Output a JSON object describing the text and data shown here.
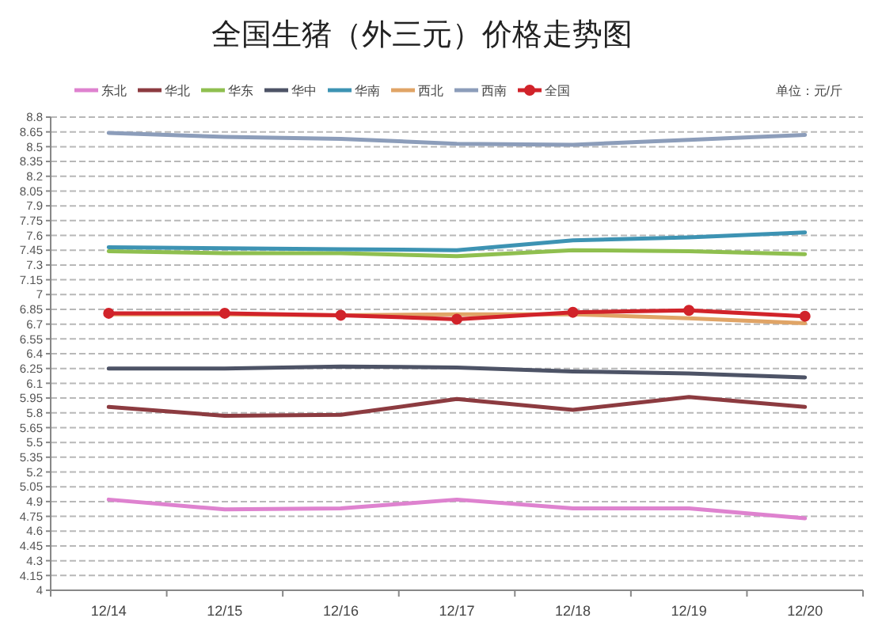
{
  "chart_data": {
    "type": "line",
    "title": "全国生猪（外三元）价格走势图",
    "annotations": [
      "单位：元/斤"
    ],
    "categories": [
      "12/14",
      "12/15",
      "12/16",
      "12/17",
      "12/18",
      "12/19",
      "12/20"
    ],
    "series": [
      {
        "name": "东北",
        "color": "#de82cf",
        "values": [
          4.92,
          4.82,
          4.83,
          4.92,
          4.83,
          4.83,
          4.73
        ]
      },
      {
        "name": "华北",
        "color": "#8c3b40",
        "values": [
          5.86,
          5.77,
          5.78,
          5.94,
          5.83,
          5.96,
          5.86
        ]
      },
      {
        "name": "华东",
        "color": "#8fbf4f",
        "values": [
          7.44,
          7.42,
          7.42,
          7.39,
          7.45,
          7.44,
          7.41
        ]
      },
      {
        "name": "华中",
        "color": "#4d5366",
        "values": [
          6.25,
          6.25,
          6.27,
          6.26,
          6.22,
          6.2,
          6.16
        ]
      },
      {
        "name": "华南",
        "color": "#3d93b3",
        "values": [
          7.48,
          7.47,
          7.46,
          7.45,
          7.55,
          7.58,
          7.63
        ]
      },
      {
        "name": "西北",
        "color": "#e0a466",
        "values": [
          6.8,
          6.8,
          6.79,
          6.8,
          6.8,
          6.76,
          6.71
        ]
      },
      {
        "name": "西南",
        "color": "#8c9dba",
        "values": [
          8.64,
          8.6,
          8.58,
          8.53,
          8.52,
          8.57,
          8.62
        ]
      },
      {
        "name": "全国",
        "color": "#d1232a",
        "marker": "circle",
        "values": [
          6.81,
          6.81,
          6.79,
          6.75,
          6.82,
          6.84,
          6.78
        ]
      }
    ],
    "ylim": [
      4,
      8.8
    ],
    "yticks": [
      4,
      4.15,
      4.3,
      4.45,
      4.6,
      4.75,
      4.9,
      5.05,
      5.2,
      5.35,
      5.5,
      5.65,
      5.8,
      5.95,
      6.1,
      6.25,
      6.4,
      6.55,
      6.7,
      6.85,
      7,
      7.15,
      7.3,
      7.45,
      7.6,
      7.75,
      7.9,
      8.05,
      8.2,
      8.35,
      8.5,
      8.65,
      8.8
    ],
    "grid": "y",
    "legend": "top",
    "line_style": "solid"
  }
}
